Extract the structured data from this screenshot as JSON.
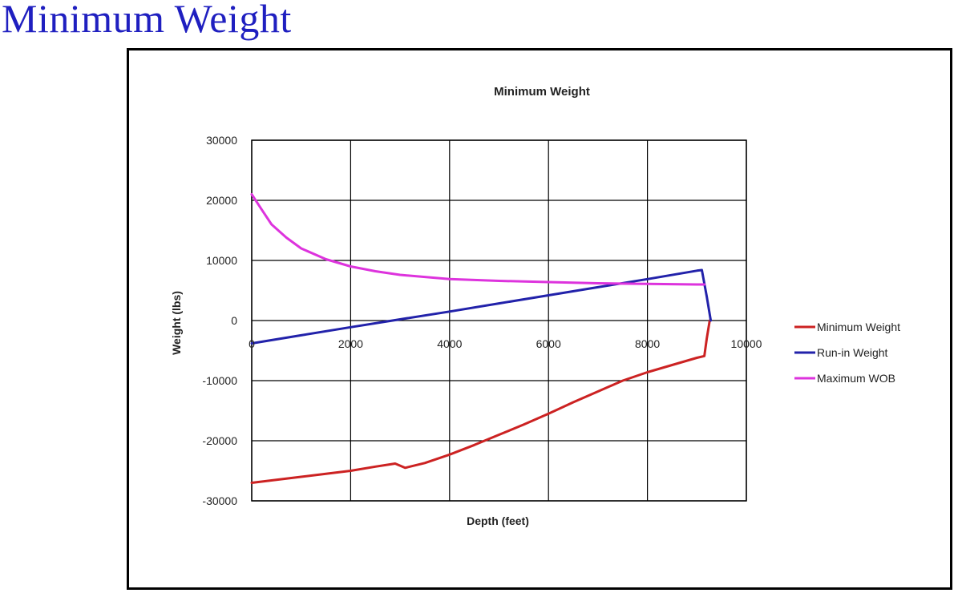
{
  "slide": {
    "title": "Minimum Weight"
  },
  "chart_data": {
    "type": "line",
    "title": "Minimum Weight",
    "xlabel": "Depth (feet)",
    "ylabel": "Weight (lbs)",
    "xlim": [
      0,
      10000
    ],
    "ylim": [
      -30000,
      30000
    ],
    "xticks": [
      0,
      2000,
      4000,
      6000,
      8000,
      10000
    ],
    "yticks": [
      30000,
      20000,
      10000,
      0,
      -10000,
      -20000,
      -30000
    ],
    "grid": true,
    "legend_position": "right",
    "series": [
      {
        "name": "Minimum Weight",
        "color": "#cc2222",
        "points": [
          [
            0,
            -27000
          ],
          [
            500,
            -26500
          ],
          [
            1000,
            -26000
          ],
          [
            1500,
            -25500
          ],
          [
            2000,
            -25000
          ],
          [
            2500,
            -24300
          ],
          [
            2900,
            -23800
          ],
          [
            3100,
            -24500
          ],
          [
            3500,
            -23700
          ],
          [
            4000,
            -22300
          ],
          [
            4500,
            -20700
          ],
          [
            5000,
            -19000
          ],
          [
            5500,
            -17300
          ],
          [
            6000,
            -15500
          ],
          [
            6500,
            -13600
          ],
          [
            7000,
            -11800
          ],
          [
            7500,
            -10000
          ],
          [
            8000,
            -8600
          ],
          [
            8500,
            -7400
          ],
          [
            9000,
            -6200
          ],
          [
            9150,
            -5900
          ],
          [
            9200,
            -3000
          ],
          [
            9260,
            0
          ]
        ]
      },
      {
        "name": "Run-in Weight",
        "color": "#2222aa",
        "points": [
          [
            0,
            -3800
          ],
          [
            1000,
            -2450
          ],
          [
            2000,
            -1100
          ],
          [
            3000,
            200
          ],
          [
            4000,
            1500
          ],
          [
            5000,
            2850
          ],
          [
            6000,
            4200
          ],
          [
            7000,
            5550
          ],
          [
            8000,
            6900
          ],
          [
            9000,
            8300
          ],
          [
            9100,
            8400
          ],
          [
            9200,
            4000
          ],
          [
            9280,
            0
          ]
        ]
      },
      {
        "name": "Maximum WOB",
        "color": "#dd33dd",
        "points": [
          [
            0,
            21000
          ],
          [
            200,
            18500
          ],
          [
            400,
            16000
          ],
          [
            700,
            13800
          ],
          [
            1000,
            12000
          ],
          [
            1500,
            10200
          ],
          [
            2000,
            9000
          ],
          [
            2500,
            8200
          ],
          [
            3000,
            7600
          ],
          [
            4000,
            6900
          ],
          [
            5000,
            6600
          ],
          [
            6000,
            6400
          ],
          [
            7000,
            6200
          ],
          [
            8000,
            6100
          ],
          [
            9000,
            6000
          ],
          [
            9150,
            6000
          ]
        ]
      }
    ]
  }
}
